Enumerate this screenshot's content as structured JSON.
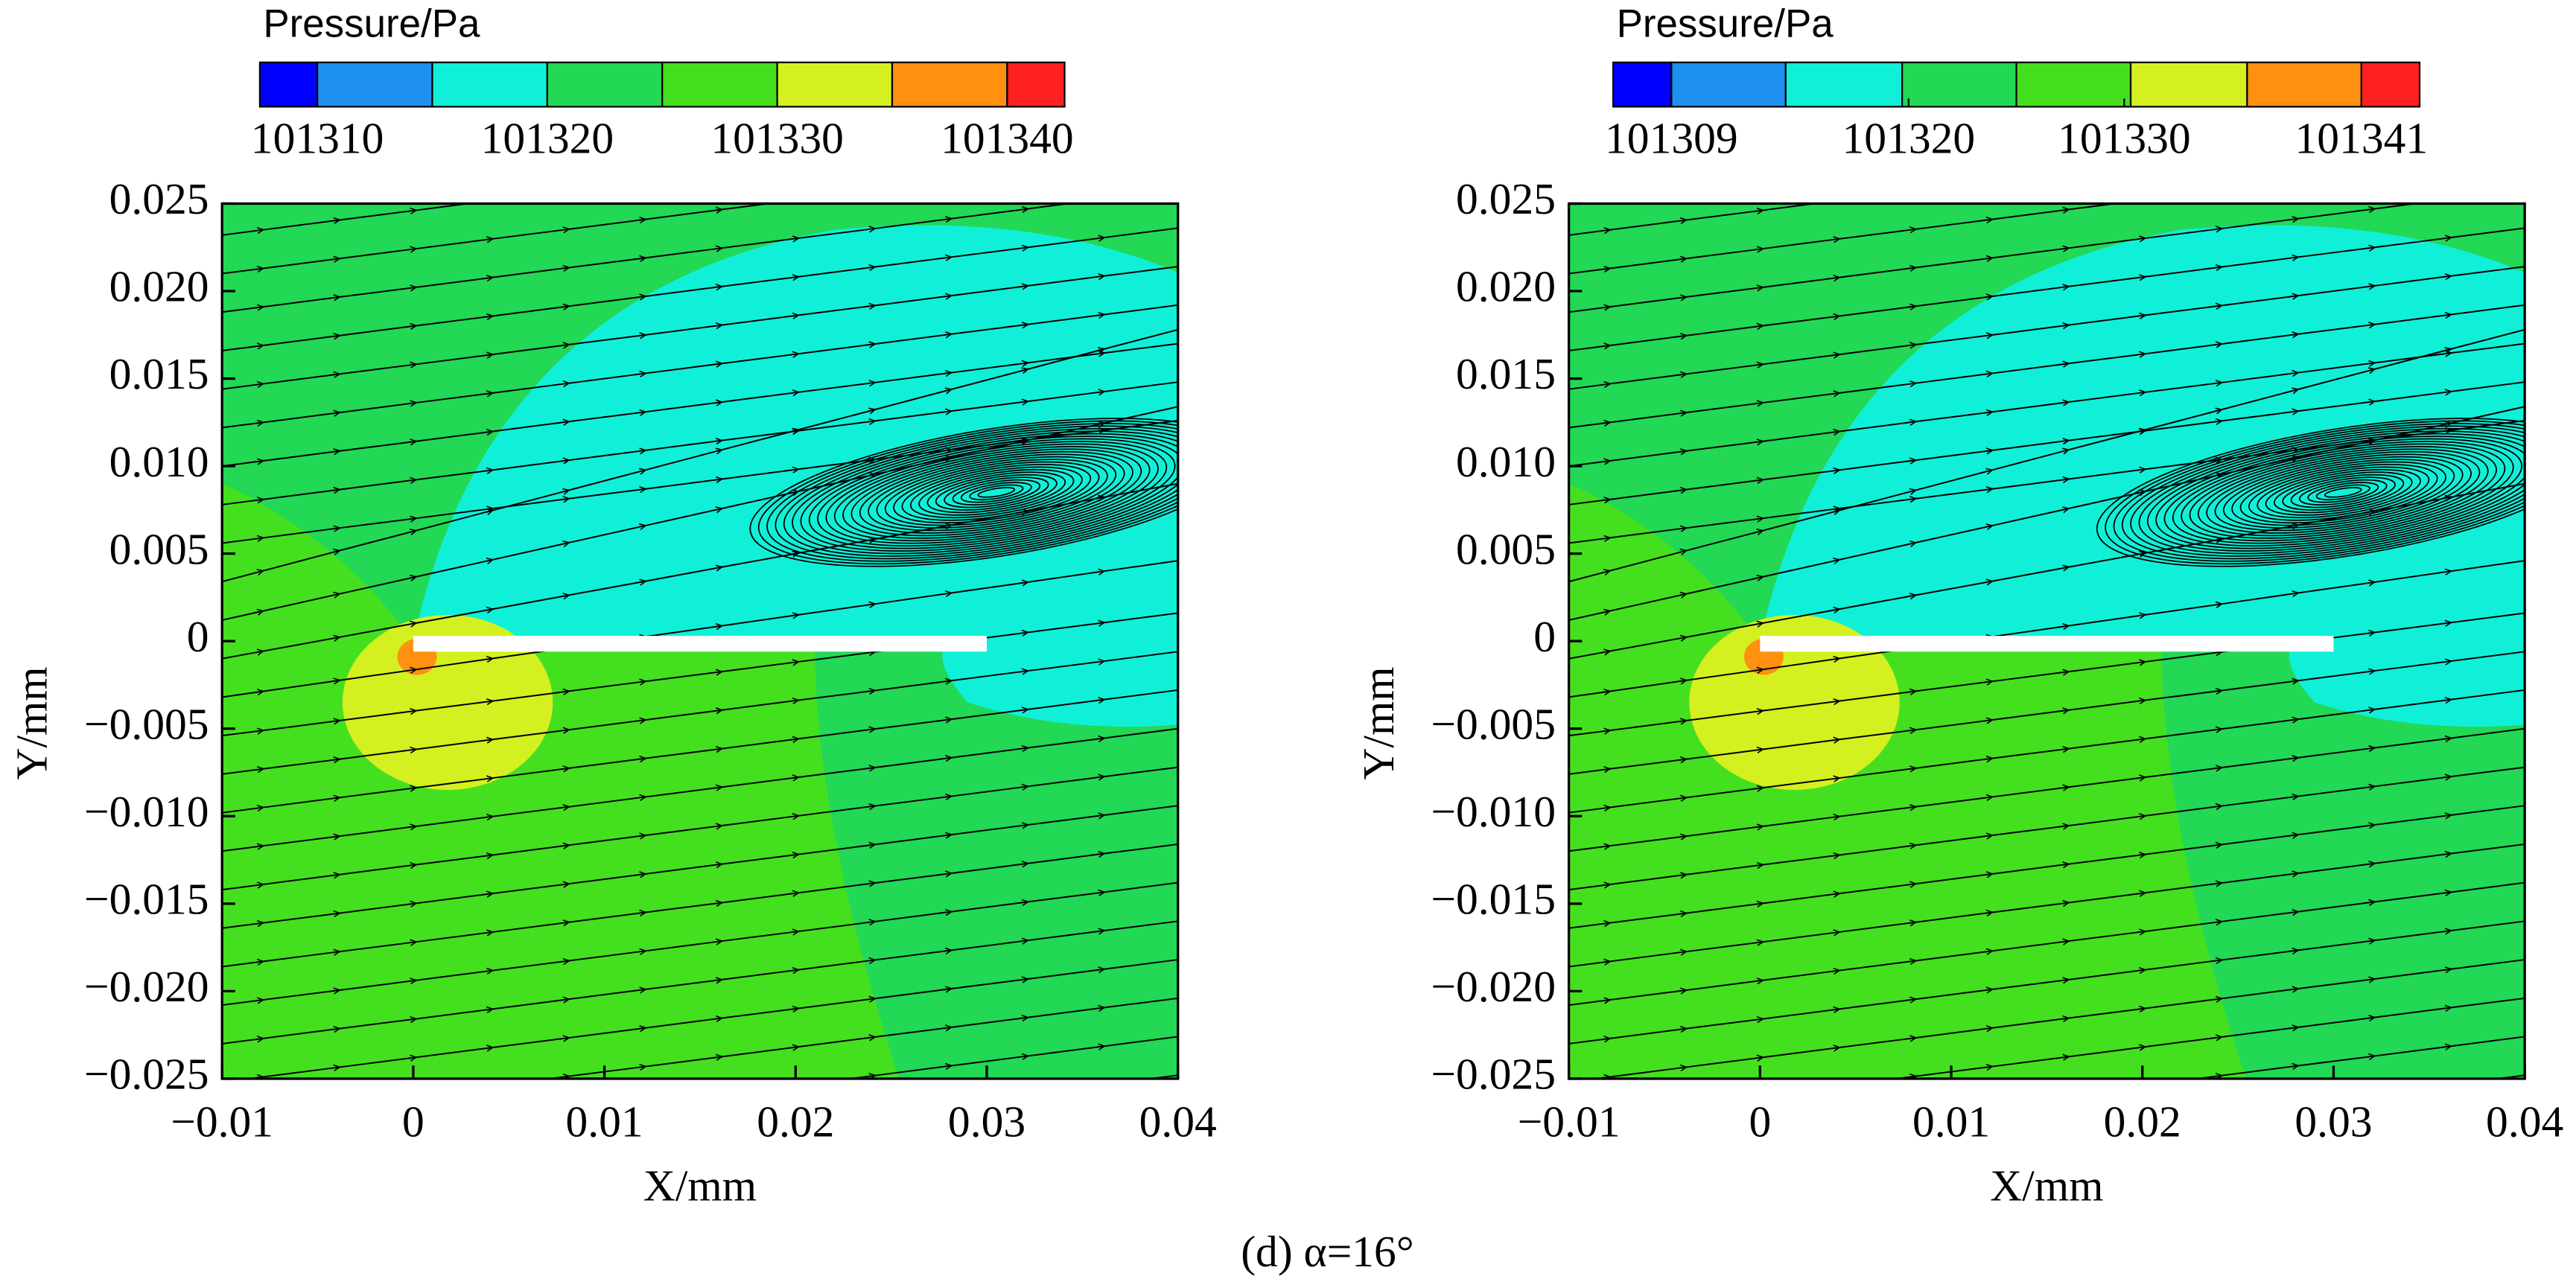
{
  "caption": "(d) α=16°",
  "chart_data": [
    {
      "type": "contour",
      "colorbar_title": "Pressure/Pa",
      "colors": [
        "#0000ff",
        "#1e90f0",
        "#10f0d8",
        "#22d855",
        "#44e020",
        "#d4f020",
        "#ff9010",
        "#ff2020"
      ],
      "colorbar_lim": [
        101307.5,
        101342.5
      ],
      "colorbar_levels": [
        101310,
        101315,
        101320,
        101325,
        101330,
        101335,
        101340
      ],
      "colorbar_ticks": [
        101310,
        101320,
        101330,
        101340
      ],
      "xlabel": "X/mm",
      "ylabel": "Y/mm",
      "xlim": [
        -0.01,
        0.04
      ],
      "xticks": [
        {
          "value": -0.01,
          "label": "−0.01"
        },
        0,
        0.01,
        0.02,
        0.03,
        0.04
      ],
      "ylim": [
        -0.025,
        0.025
      ],
      "yticks": [
        {
          "value": -0.025,
          "label": "−0.025"
        },
        {
          "value": -0.02,
          "label": "−0.020"
        },
        {
          "value": -0.015,
          "label": "−0.015"
        },
        {
          "value": -0.01,
          "label": "−0.010"
        },
        {
          "value": -0.005,
          "label": "−0.005"
        },
        0,
        0.005,
        {
          "value": 0.01,
          "label": "0.010"
        },
        0.015,
        {
          "value": 0.02,
          "label": "0.020"
        },
        0.025
      ]
    },
    {
      "type": "contour",
      "colorbar_title": "Pressure/Pa",
      "colors": [
        "#0000ff",
        "#1e90f0",
        "#10f0d8",
        "#22d855",
        "#44e020",
        "#d4f020",
        "#ff9010",
        "#ff2020"
      ],
      "colorbar_lim": [
        101306.3,
        101343.7
      ],
      "colorbar_levels": [
        101309,
        101314.3,
        101319.7,
        101325,
        101330.3,
        101335.7,
        101341
      ],
      "colorbar_ticks": [
        101309,
        101320,
        101330,
        101341
      ],
      "xlabel": "X/mm",
      "ylabel": "Y/mm",
      "xlim": [
        -0.01,
        0.04
      ],
      "xticks": [
        {
          "value": -0.01,
          "label": "−0.01"
        },
        0,
        0.01,
        0.02,
        0.03,
        0.04
      ],
      "ylim": [
        -0.025,
        0.025
      ],
      "yticks": [
        {
          "value": -0.025,
          "label": "−0.025"
        },
        {
          "value": -0.02,
          "label": "−0.020"
        },
        {
          "value": -0.015,
          "label": "−0.015"
        },
        {
          "value": -0.01,
          "label": "−0.010"
        },
        {
          "value": -0.005,
          "label": "−0.005"
        },
        0,
        0.005,
        {
          "value": 0.01,
          "label": "0.010"
        },
        0.015,
        {
          "value": 0.02,
          "label": "0.020"
        },
        0.025
      ]
    }
  ]
}
